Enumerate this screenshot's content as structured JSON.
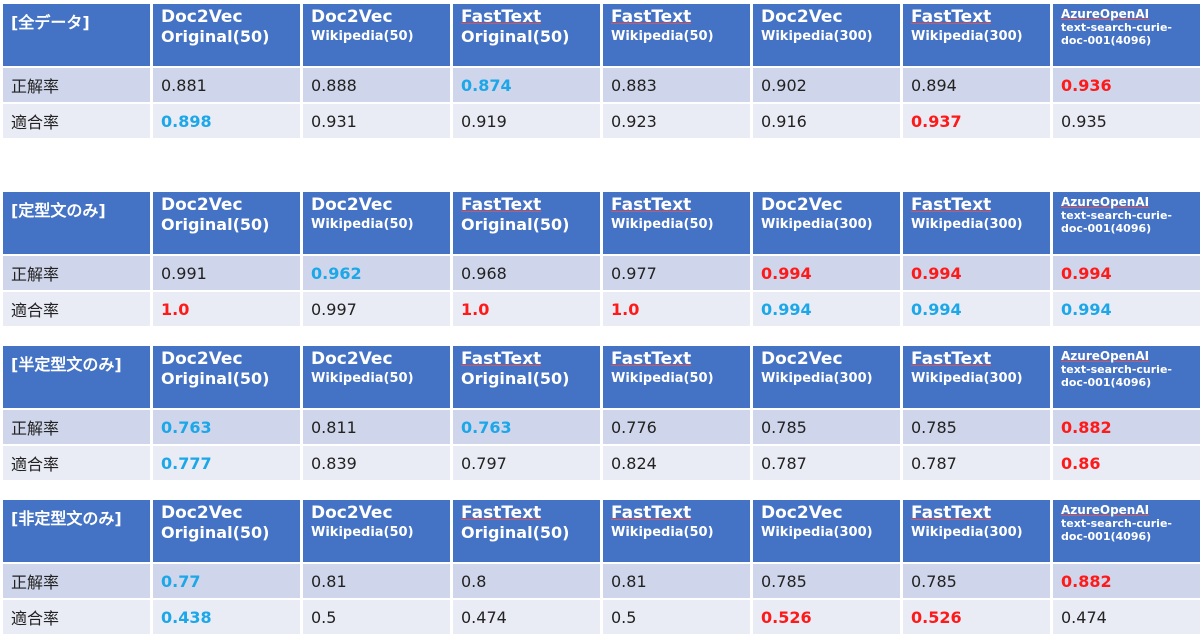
{
  "columns": [
    {
      "line1": "Doc2Vec",
      "line2": "Original(50)",
      "line2_small": false,
      "underline": false,
      "azure": false
    },
    {
      "line1": "Doc2Vec",
      "line2": "Wikipedia(50)",
      "line2_small": true,
      "underline": false,
      "azure": false
    },
    {
      "line1": "FastText",
      "line2": "Original(50)",
      "line2_small": false,
      "underline": true,
      "azure": false
    },
    {
      "line1": "FastText",
      "line2": "Wikipedia(50)",
      "line2_small": true,
      "underline": true,
      "azure": false
    },
    {
      "line1": "Doc2Vec",
      "line2": "Wikipedia(300)",
      "line2_small": true,
      "underline": false,
      "azure": false
    },
    {
      "line1": "FastText",
      "line2": "Wikipedia(300)",
      "line2_small": true,
      "underline": true,
      "azure": false
    },
    {
      "line1": "AzureOpenAI",
      "line2": "text-search-curie-doc-001(4096)",
      "line2_small": true,
      "underline": true,
      "azure": true
    }
  ],
  "highlight_colors": {
    "blue": "#1ca7e8",
    "red": "#ff1a1a",
    "header": "#4472c4"
  },
  "tables": [
    {
      "label": "[全データ]",
      "rows": [
        {
          "label": "正解率",
          "cells": [
            {
              "v": "0.881",
              "c": ""
            },
            {
              "v": "0.888",
              "c": ""
            },
            {
              "v": "0.874",
              "c": "blue"
            },
            {
              "v": "0.883",
              "c": ""
            },
            {
              "v": "0.902",
              "c": ""
            },
            {
              "v": "0.894",
              "c": ""
            },
            {
              "v": "0.936",
              "c": "red"
            }
          ]
        },
        {
          "label": "適合率",
          "cells": [
            {
              "v": "0.898",
              "c": "blue"
            },
            {
              "v": "0.931",
              "c": ""
            },
            {
              "v": "0.919",
              "c": ""
            },
            {
              "v": "0.923",
              "c": ""
            },
            {
              "v": "0.916",
              "c": ""
            },
            {
              "v": "0.937",
              "c": "red"
            },
            {
              "v": "0.935",
              "c": ""
            }
          ]
        }
      ]
    },
    {
      "label": "[定型文のみ]",
      "rows": [
        {
          "label": "正解率",
          "cells": [
            {
              "v": "0.991",
              "c": ""
            },
            {
              "v": "0.962",
              "c": "blue"
            },
            {
              "v": "0.968",
              "c": ""
            },
            {
              "v": "0.977",
              "c": ""
            },
            {
              "v": "0.994",
              "c": "red"
            },
            {
              "v": "0.994",
              "c": "red"
            },
            {
              "v": "0.994",
              "c": "red"
            }
          ]
        },
        {
          "label": "適合率",
          "cells": [
            {
              "v": "1.0",
              "c": "red"
            },
            {
              "v": "0.997",
              "c": ""
            },
            {
              "v": "1.0",
              "c": "red"
            },
            {
              "v": "1.0",
              "c": "red"
            },
            {
              "v": "0.994",
              "c": "blue"
            },
            {
              "v": "0.994",
              "c": "blue"
            },
            {
              "v": "0.994",
              "c": "blue"
            }
          ]
        }
      ]
    },
    {
      "label": "[半定型文のみ]",
      "rows": [
        {
          "label": "正解率",
          "cells": [
            {
              "v": "0.763",
              "c": "blue"
            },
            {
              "v": "0.811",
              "c": ""
            },
            {
              "v": "0.763",
              "c": "blue"
            },
            {
              "v": "0.776",
              "c": ""
            },
            {
              "v": "0.785",
              "c": ""
            },
            {
              "v": "0.785",
              "c": ""
            },
            {
              "v": "0.882",
              "c": "red"
            }
          ]
        },
        {
          "label": "適合率",
          "cells": [
            {
              "v": "0.777",
              "c": "blue"
            },
            {
              "v": "0.839",
              "c": ""
            },
            {
              "v": "0.797",
              "c": ""
            },
            {
              "v": "0.824",
              "c": ""
            },
            {
              "v": "0.787",
              "c": ""
            },
            {
              "v": "0.787",
              "c": ""
            },
            {
              "v": "0.86",
              "c": "red"
            }
          ]
        }
      ]
    },
    {
      "label": "[非定型文のみ]",
      "rows": [
        {
          "label": "正解率",
          "cells": [
            {
              "v": "0.77",
              "c": "blue"
            },
            {
              "v": "0.81",
              "c": ""
            },
            {
              "v": "0.8",
              "c": ""
            },
            {
              "v": "0.81",
              "c": ""
            },
            {
              "v": "0.785",
              "c": ""
            },
            {
              "v": "0.785",
              "c": ""
            },
            {
              "v": "0.882",
              "c": "red"
            }
          ]
        },
        {
          "label": "適合率",
          "cells": [
            {
              "v": "0.438",
              "c": "blue"
            },
            {
              "v": "0.5",
              "c": ""
            },
            {
              "v": "0.474",
              "c": ""
            },
            {
              "v": "0.5",
              "c": ""
            },
            {
              "v": "0.526",
              "c": "red"
            },
            {
              "v": "0.526",
              "c": "red"
            },
            {
              "v": "0.474",
              "c": ""
            }
          ]
        }
      ]
    }
  ]
}
